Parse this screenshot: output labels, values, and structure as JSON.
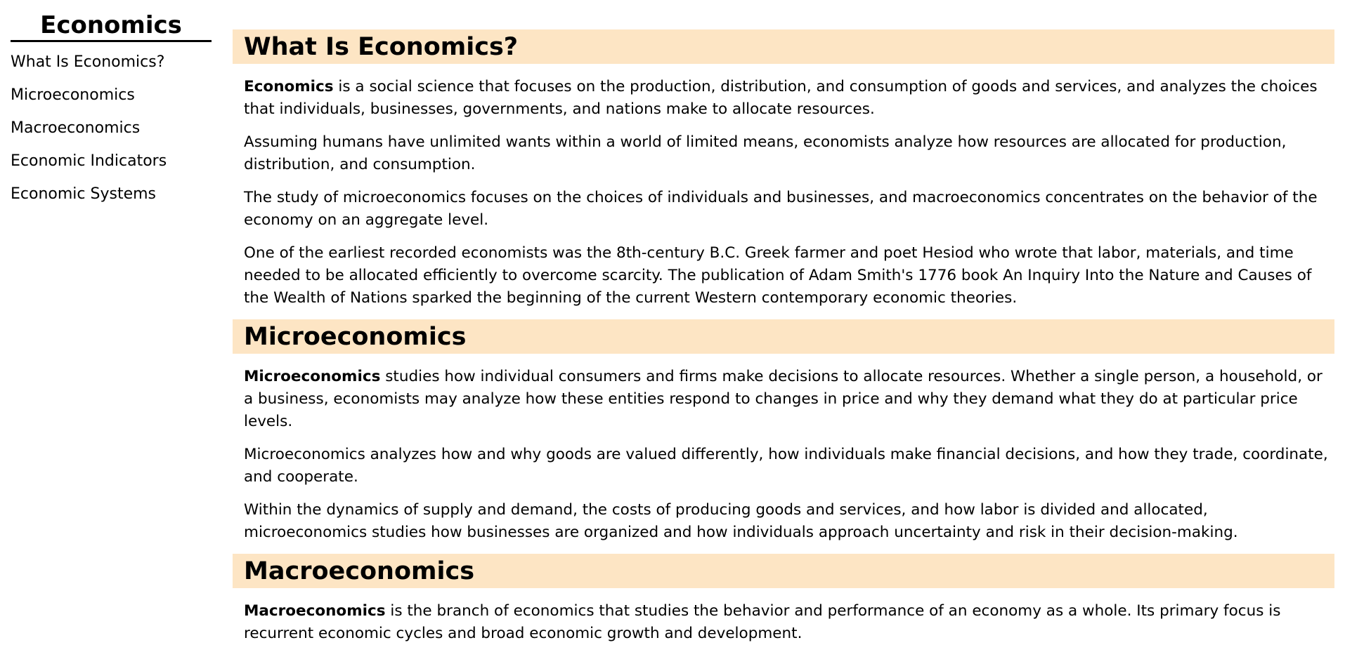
{
  "sidebar": {
    "title": "Economics",
    "items": [
      {
        "label": "What Is Economics?"
      },
      {
        "label": "Microeconomics"
      },
      {
        "label": "Macroeconomics"
      },
      {
        "label": "Economic Indicators"
      },
      {
        "label": "Economic Systems"
      }
    ]
  },
  "sections": [
    {
      "heading": "What Is Economics?",
      "paragraphs": [
        {
          "bold": "Economics",
          "text": " is a social science that focuses on the production, distribution, and consumption of goods and services, and analyzes the choices that individuals, businesses, governments, and nations make to allocate resources."
        },
        {
          "bold": "",
          "text": "Assuming humans have unlimited wants within a world of limited means, economists analyze how resources are allocated for production, distribution, and consumption."
        },
        {
          "bold": "",
          "text": "The study of microeconomics focuses on the choices of individuals and businesses, and macroeconomics concentrates on the behavior of the economy on an aggregate level."
        },
        {
          "bold": "",
          "text": "One of the earliest recorded economists was the 8th-century B.C. Greek farmer and poet Hesiod who wrote that labor, materials, and time needed to be allocated efficiently to overcome scarcity. The publication of Adam Smith's 1776 book An Inquiry Into the Nature and Causes of the Wealth of Nations sparked the beginning of the current Western contemporary economic theories."
        }
      ]
    },
    {
      "heading": "Microeconomics",
      "paragraphs": [
        {
          "bold": "Microeconomics",
          "text": " studies how individual consumers and firms make decisions to allocate resources. Whether a single person, a household, or a business, economists may analyze how these entities respond to changes in price and why they demand what they do at particular price levels."
        },
        {
          "bold": "",
          "text": "Microeconomics analyzes how and why goods are valued differently, how individuals make financial decisions, and how they trade, coordinate, and cooperate."
        },
        {
          "bold": "",
          "text": "Within the dynamics of supply and demand, the costs of producing goods and services, and how labor is divided and allocated, microeconomics studies how businesses are organized and how individuals approach uncertainty and risk in their decision-making."
        }
      ]
    },
    {
      "heading": "Macroeconomics",
      "paragraphs": [
        {
          "bold": "Macroeconomics",
          "text": " is the branch of economics that studies the behavior and performance of an economy as a whole. Its primary focus is recurrent economic cycles and broad economic growth and development."
        }
      ]
    }
  ],
  "colors": {
    "heading_background": "#fde5c4",
    "text": "#000000",
    "divider": "#000000"
  }
}
